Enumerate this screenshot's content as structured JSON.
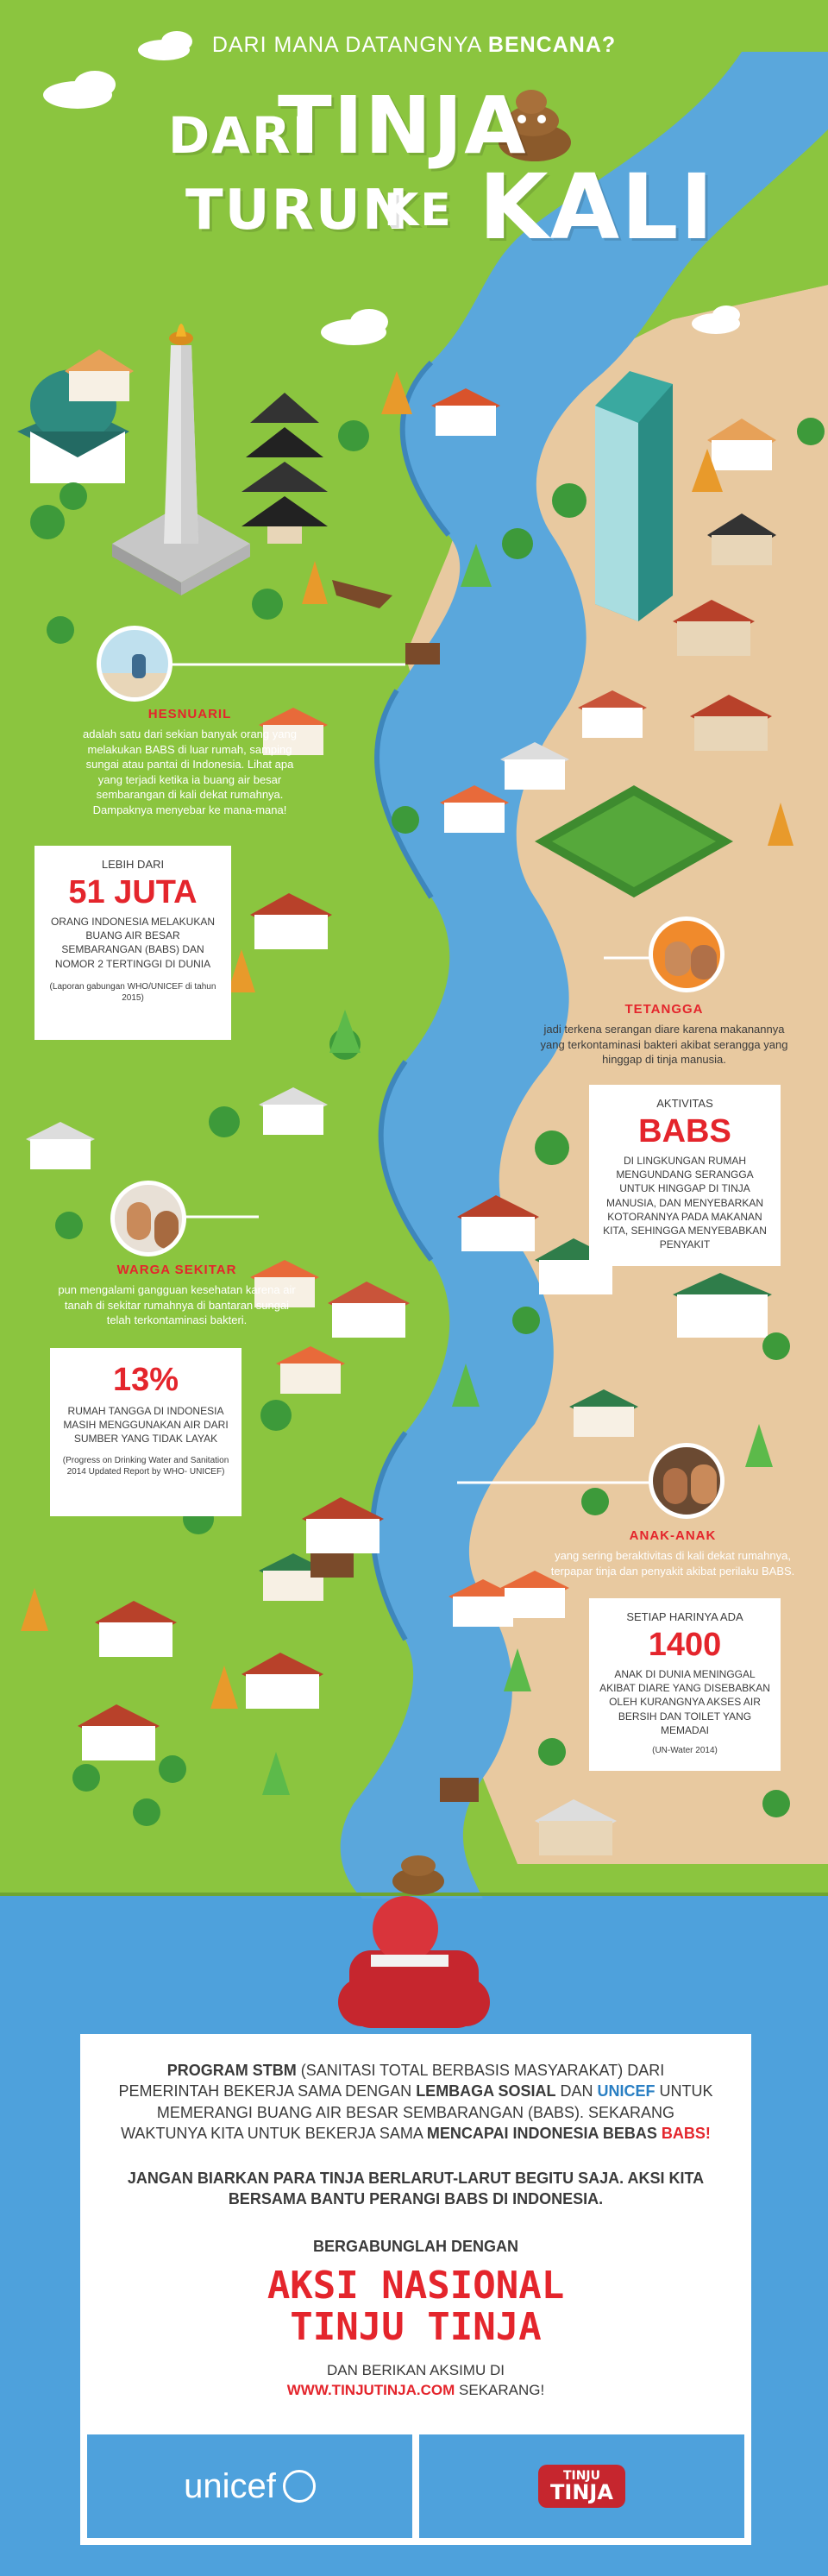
{
  "header": {
    "kicker_prefix": "DARI MANA DATANGNYA",
    "kicker_bold": "BENCANA?",
    "title_dari": "DARI",
    "title_tinja": "TINJA",
    "title_turun": "TURUN",
    "title_ke": "KE",
    "title_kali": "KALI"
  },
  "colors": {
    "grass": "#8bc53f",
    "river": "#5aa7dc",
    "sand": "#e8c9a0",
    "sea": "#4ea1dc",
    "accent_red": "#e4252c",
    "accent_blue": "#2a7fc3"
  },
  "notes": {
    "hesnuaril": {
      "name": "HESNUARIL",
      "text": "adalah satu dari sekian banyak orang yang melakukan BABS di luar rumah, samping sungai atau pantai di Indonesia. Lihat apa yang terjadi ketika ia buang air besar sembarangan di kali dekat rumahnya. Dampaknya menyebar ke mana-mana!"
    },
    "tetangga": {
      "name": "TETANGGA",
      "text": "jadi terkena serangan diare karena makanannya yang terkontaminasi bakteri akibat serangga yang hinggap di tinja manusia."
    },
    "warga": {
      "name": "WARGA SEKITAR",
      "text": "pun mengalami gangguan kesehatan karena air tanah di sekitar rumahnya di bantaran sungai telah terkontaminasi bakteri."
    },
    "anak": {
      "name": "ANAK-ANAK",
      "text": "yang sering beraktivitas di kali dekat rumahnya, terpapar tinja dan penyakit akibat perilaku BABS."
    }
  },
  "cards": {
    "juta": {
      "top": "LEBIH DARI",
      "big": "51 JUTA",
      "body": "ORANG INDONESIA MELAKUKAN BUANG AIR BESAR SEMBARANGAN (BABS) DAN  NOMOR 2 TERTINGGI DI DUNIA",
      "source": "(Laporan gabungan WHO/UNICEF di tahun 2015)"
    },
    "babs": {
      "top": "AKTIVITAS",
      "big": "BABS",
      "body": "DI LINGKUNGAN RUMAH MENGUNDANG SERANGGA UNTUK HINGGAP DI TINJA MANUSIA, DAN MENYEBARKAN KOTORANNYA PADA MAKANAN KITA, SEHINGGA MENYEBABKAN PENYAKIT"
    },
    "persen": {
      "big": "13%",
      "body": "RUMAH TANGGA DI INDONESIA MASIH MENGGUNAKAN AIR DARI SUMBER YANG TIDAK LAYAK",
      "source": "(Progress on Drinking Water and Sanitation 2014 Updated Report by WHO- UNICEF)"
    },
    "anak": {
      "top": "SETIAP HARINYA ADA",
      "big": "1400",
      "body": "ANAK DI DUNIA MENINGGAL AKIBAT DIARE YANG DISEBABKAN OLEH KURANGNYA AKSES AIR BERSIH DAN TOILET YANG MEMADAI",
      "source": "(UN-Water 2014)"
    }
  },
  "bottom": {
    "p1_a": "PROGRAM STBM",
    "p1_b": " (SANITASI TOTAL BERBASIS MASYARAKAT) DARI PEMERINTAH BEKERJA SAMA DENGAN ",
    "p1_c": "LEMBAGA SOSIAL",
    "p1_d": " DAN ",
    "p1_e": "UNICEF",
    "p1_f": " UNTUK MEMERANGI BUANG AIR BESAR SEMBARANGAN (BABS). SEKARANG WAKTUNYA KITA UNTUK BEKERJA SAMA ",
    "p1_g": "MENCAPAI INDONESIA BEBAS ",
    "p1_h": "BABS!",
    "p2": "JANGAN BIARKAN PARA TINJA BERLARUT-LARUT BEGITU SAJA. AKSI KITA BERSAMA BANTU PERANGI BABS DI INDONESIA.",
    "join": "BERGABUNGLAH DENGAN",
    "campaign_1": "AKSI NASIONAL",
    "campaign_2": "TINJU TINJA",
    "cta_a": "DAN BERIKAN AKSIMU DI",
    "cta_url": "WWW.TINJUTINJA.COM",
    "cta_b": " SEKARANG!"
  },
  "logos": {
    "unicef": "unicef",
    "tinju_1": "TINJU",
    "tinju_2": "TINJA"
  }
}
